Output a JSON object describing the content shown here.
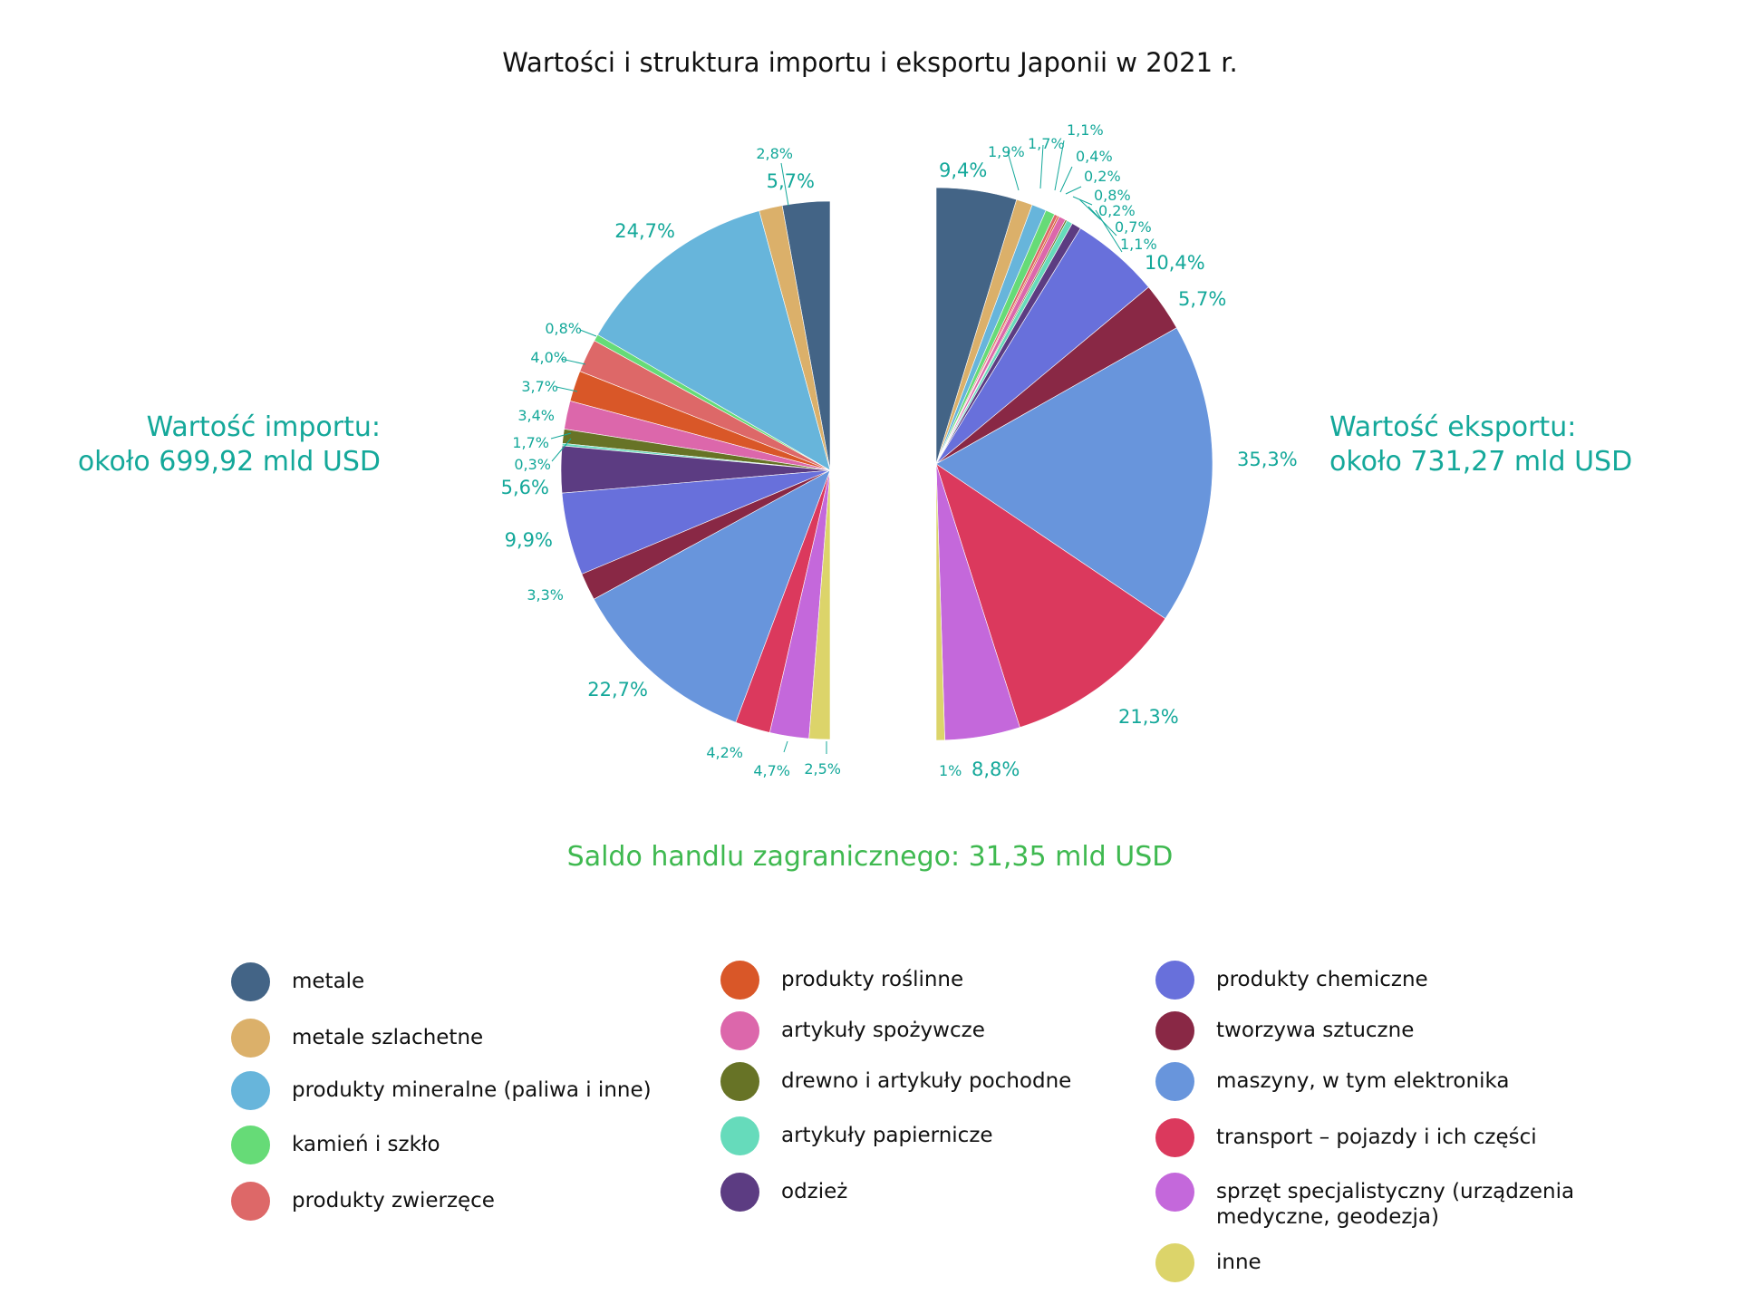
{
  "title": "Wartości i struktura importu i eksportu Japonii w 2021 r.",
  "import_label": {
    "line1": "Wartość importu:",
    "line2": "około 699,92 mld USD"
  },
  "export_label": {
    "line1": "Wartość eksportu:",
    "line2": "około 731,27 mld USD"
  },
  "saldo": "Saldo handlu zagranicznego: 31,35 mld USD",
  "colors": {
    "accent_teal": "#14a89a",
    "saldo_green": "#3fb950"
  },
  "legend": [
    {
      "label": "metale",
      "color": "#436486"
    },
    {
      "label": "metale szlachetne",
      "color": "#dbb06a"
    },
    {
      "label": "produkty mineralne (paliwa i inne)",
      "color": "#67b5db"
    },
    {
      "label": "kamień i szkło",
      "color": "#66db77"
    },
    {
      "label": "produkty zwierzęce",
      "color": "#dd6868"
    },
    {
      "label": "produkty roślinne",
      "color": "#d95728"
    },
    {
      "label": "artykuły spożywcze",
      "color": "#dc67ab"
    },
    {
      "label": "drewno i artykuły pochodne",
      "color": "#677326"
    },
    {
      "label": "artykuły papiernicze",
      "color": "#66dbbb"
    },
    {
      "label": "odzież",
      "color": "#5c3c82"
    },
    {
      "label": "produkty chemiczne",
      "color": "#6870db"
    },
    {
      "label": "tworzywa sztuczne",
      "color": "#892845"
    },
    {
      "label": "maszyny, w tym elektronika",
      "color": "#6895dc"
    },
    {
      "label": "transport – pojazdy i ich części",
      "color": "#db395d"
    },
    {
      "label": "sprzęt specjalistyczny (urządzenia medyczne, geodezja)",
      "color": "#c468db"
    },
    {
      "label": "inne",
      "color": "#dcd46a"
    }
  ],
  "chart_data": [
    {
      "type": "pie",
      "title": "Import (left half-pie)",
      "subtitle": "Wartość importu: około 699,92 mld USD",
      "categories": [
        "metale",
        "metale szlachetne",
        "produkty mineralne (paliwa i inne)",
        "kamień i szkło",
        "produkty zwierzęce",
        "produkty roślinne",
        "artykuły spożywcze",
        "drewno i artykuły pochodne",
        "artykuły papiernicze",
        "odzież",
        "produkty chemiczne",
        "tworzywa sztuczne",
        "maszyny, w tym elektronika",
        "transport – pojazdy i ich części",
        "sprzęt specjalistyczny (urządzenia medyczne, geodezja)",
        "inne"
      ],
      "values": [
        5.7,
        2.8,
        24.7,
        0.8,
        4.0,
        3.7,
        3.4,
        1.7,
        0.3,
        5.6,
        9.9,
        3.3,
        22.7,
        4.2,
        4.7,
        2.5
      ],
      "labels": [
        "5,7%",
        "2,8%",
        "24,7%",
        "0,8%",
        "4,0%",
        "3,7%",
        "3,4%",
        "1,7%",
        "0,3%",
        "5,6%",
        "9,9%",
        "3,3%",
        "22,7%",
        "4,2%",
        "4,7%",
        "2,5%"
      ],
      "unit": "%"
    },
    {
      "type": "pie",
      "title": "Eksport (right half-pie)",
      "subtitle": "Wartość eksportu: około 731,27 mld USD",
      "categories": [
        "metale",
        "metale szlachetne",
        "produkty mineralne (paliwa i inne)",
        "kamień i szkło",
        "produkty zwierzęce",
        "produkty roślinne",
        "artykuły spożywcze",
        "drewno i artykuły pochodne",
        "artykuły papiernicze",
        "odzież",
        "produkty chemiczne",
        "tworzywa sztuczne",
        "maszyny, w tym elektronika",
        "transport – pojazdy i ich części",
        "sprzęt specjalistyczny (urządzenia medyczne, geodezja)",
        "inne"
      ],
      "values": [
        9.4,
        1.9,
        1.7,
        1.1,
        0.4,
        0.2,
        0.8,
        0.2,
        0.7,
        1.1,
        10.4,
        5.7,
        35.3,
        21.3,
        8.8,
        1.0
      ],
      "labels": [
        "9,4%",
        "1,9%",
        "1,7%",
        "1,1%",
        "0,4%",
        "0,2%",
        "0,8%",
        "0,2%",
        "0,7%",
        "1,1%",
        "10,4%",
        "5,7%",
        "35,3%",
        "21,3%",
        "8,8%",
        "1%"
      ],
      "unit": "%"
    }
  ],
  "annotation": "Saldo handlu zagranicznego: 31,35 mld USD"
}
